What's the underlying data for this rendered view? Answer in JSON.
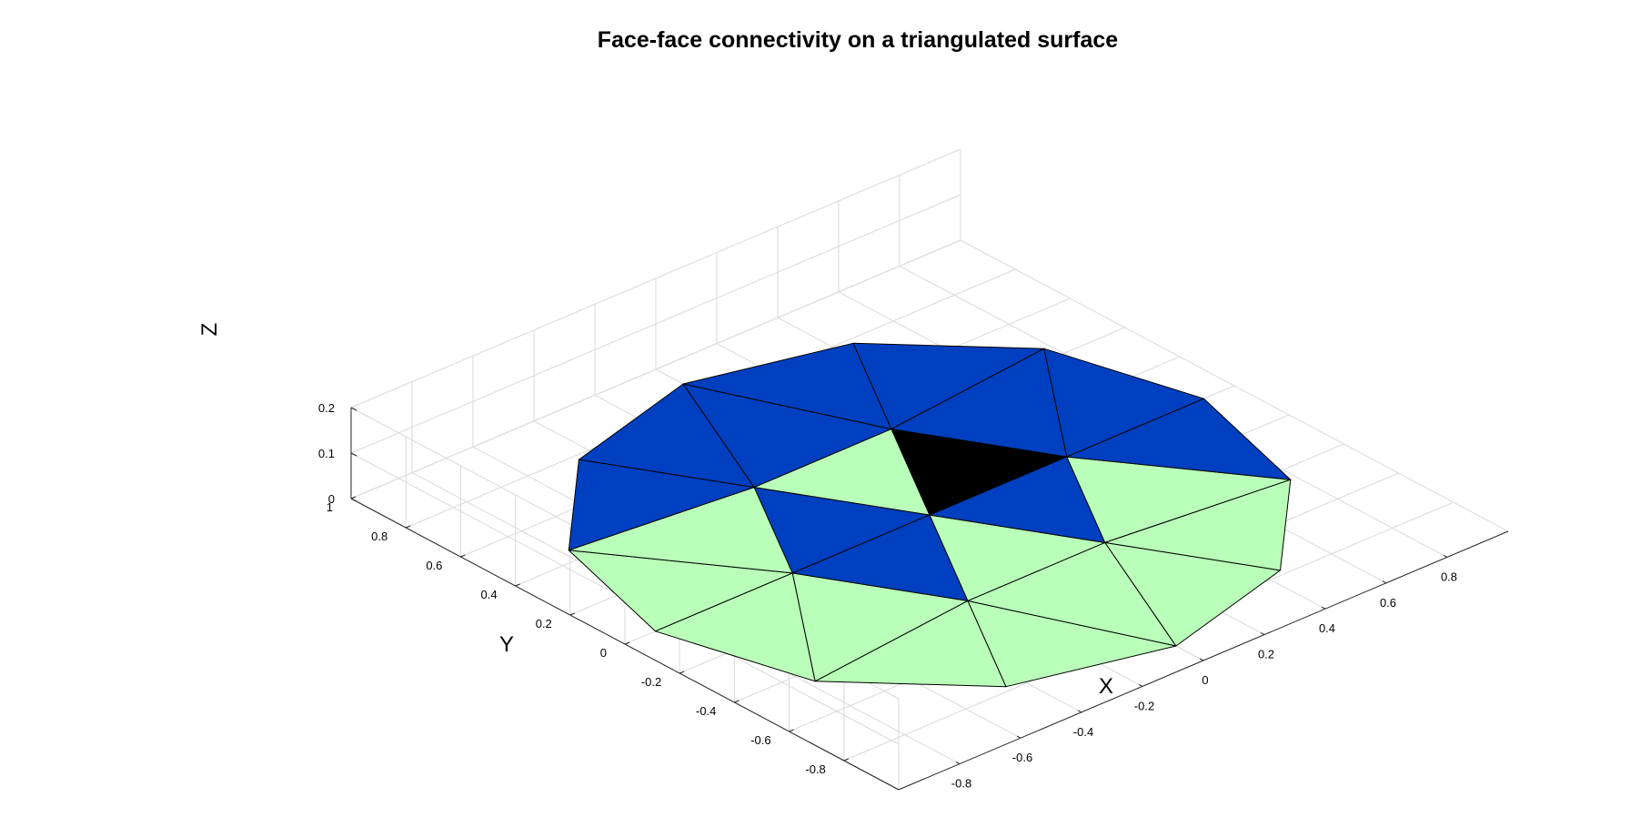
{
  "title": "Face-face connectivity on a triangulated surface",
  "axes": {
    "x_label": "X",
    "y_label": "Y",
    "z_label": "Z",
    "x_ticks": [
      "-0.8",
      "-0.6",
      "-0.4",
      "-0.2",
      "0",
      "0.2",
      "0.4",
      "0.6",
      "0.8"
    ],
    "y_ticks": [
      "-0.8",
      "-0.6",
      "-0.4",
      "-0.2",
      "0",
      "0.2",
      "0.4",
      "0.6",
      "0.8",
      "1"
    ],
    "z_ticks": [
      "0",
      "0.1",
      "0.2"
    ],
    "grid": true
  },
  "colors": {
    "selected_face": "#000000",
    "neighbor_faces": "#0040c0",
    "other_faces": "#b9ffb9",
    "edges": "#000000"
  },
  "chart_data": {
    "type": "trisurf",
    "description_free": true,
    "vertices": [
      [
        0.0,
        0.0,
        0
      ],
      [
        0.45,
        0.0,
        0
      ],
      [
        0.225,
        0.39,
        0
      ],
      [
        -0.225,
        0.39,
        0
      ],
      [
        -0.45,
        0.0,
        0
      ],
      [
        -0.225,
        -0.39,
        0
      ],
      [
        0.225,
        -0.39,
        0
      ],
      [
        0.9,
        0.0,
        0
      ],
      [
        0.78,
        0.45,
        0
      ],
      [
        0.45,
        0.78,
        0
      ],
      [
        0.0,
        0.9,
        0
      ],
      [
        -0.45,
        0.78,
        0
      ],
      [
        -0.78,
        0.45,
        0
      ],
      [
        -0.9,
        0.0,
        0
      ],
      [
        -0.78,
        -0.45,
        0
      ],
      [
        -0.45,
        -0.78,
        0
      ],
      [
        0.0,
        -0.9,
        0
      ],
      [
        0.45,
        -0.78,
        0
      ],
      [
        0.78,
        -0.45,
        0
      ]
    ],
    "faces": [
      {
        "v": [
          0,
          1,
          2
        ],
        "group": "selected"
      },
      {
        "v": [
          0,
          2,
          3
        ],
        "group": "other"
      },
      {
        "v": [
          0,
          3,
          4
        ],
        "group": "neighbor"
      },
      {
        "v": [
          0,
          4,
          5
        ],
        "group": "neighbor"
      },
      {
        "v": [
          0,
          5,
          6
        ],
        "group": "other"
      },
      {
        "v": [
          0,
          6,
          1
        ],
        "group": "neighbor"
      },
      {
        "v": [
          1,
          7,
          8
        ],
        "group": "neighbor"
      },
      {
        "v": [
          1,
          8,
          2
        ],
        "group": "neighbor"
      },
      {
        "v": [
          2,
          8,
          9
        ],
        "group": "neighbor"
      },
      {
        "v": [
          2,
          9,
          10
        ],
        "group": "neighbor"
      },
      {
        "v": [
          2,
          10,
          3
        ],
        "group": "neighbor"
      },
      {
        "v": [
          3,
          10,
          11
        ],
        "group": "neighbor"
      },
      {
        "v": [
          3,
          11,
          12
        ],
        "group": "neighbor"
      },
      {
        "v": [
          3,
          12,
          4
        ],
        "group": "other"
      },
      {
        "v": [
          4,
          12,
          13
        ],
        "group": "other"
      },
      {
        "v": [
          4,
          13,
          14
        ],
        "group": "other"
      },
      {
        "v": [
          4,
          14,
          5
        ],
        "group": "other"
      },
      {
        "v": [
          5,
          14,
          15
        ],
        "group": "other"
      },
      {
        "v": [
          5,
          15,
          16
        ],
        "group": "other"
      },
      {
        "v": [
          5,
          16,
          6
        ],
        "group": "other"
      },
      {
        "v": [
          6,
          16,
          17
        ],
        "group": "other"
      },
      {
        "v": [
          6,
          17,
          18
        ],
        "group": "other"
      },
      {
        "v": [
          6,
          18,
          1
        ],
        "group": "other"
      },
      {
        "v": [
          1,
          18,
          7
        ],
        "group": "neighbor"
      }
    ],
    "xlim": [
      -1,
      1
    ],
    "ylim": [
      -1,
      1
    ],
    "zlim": [
      0,
      0.2
    ]
  }
}
